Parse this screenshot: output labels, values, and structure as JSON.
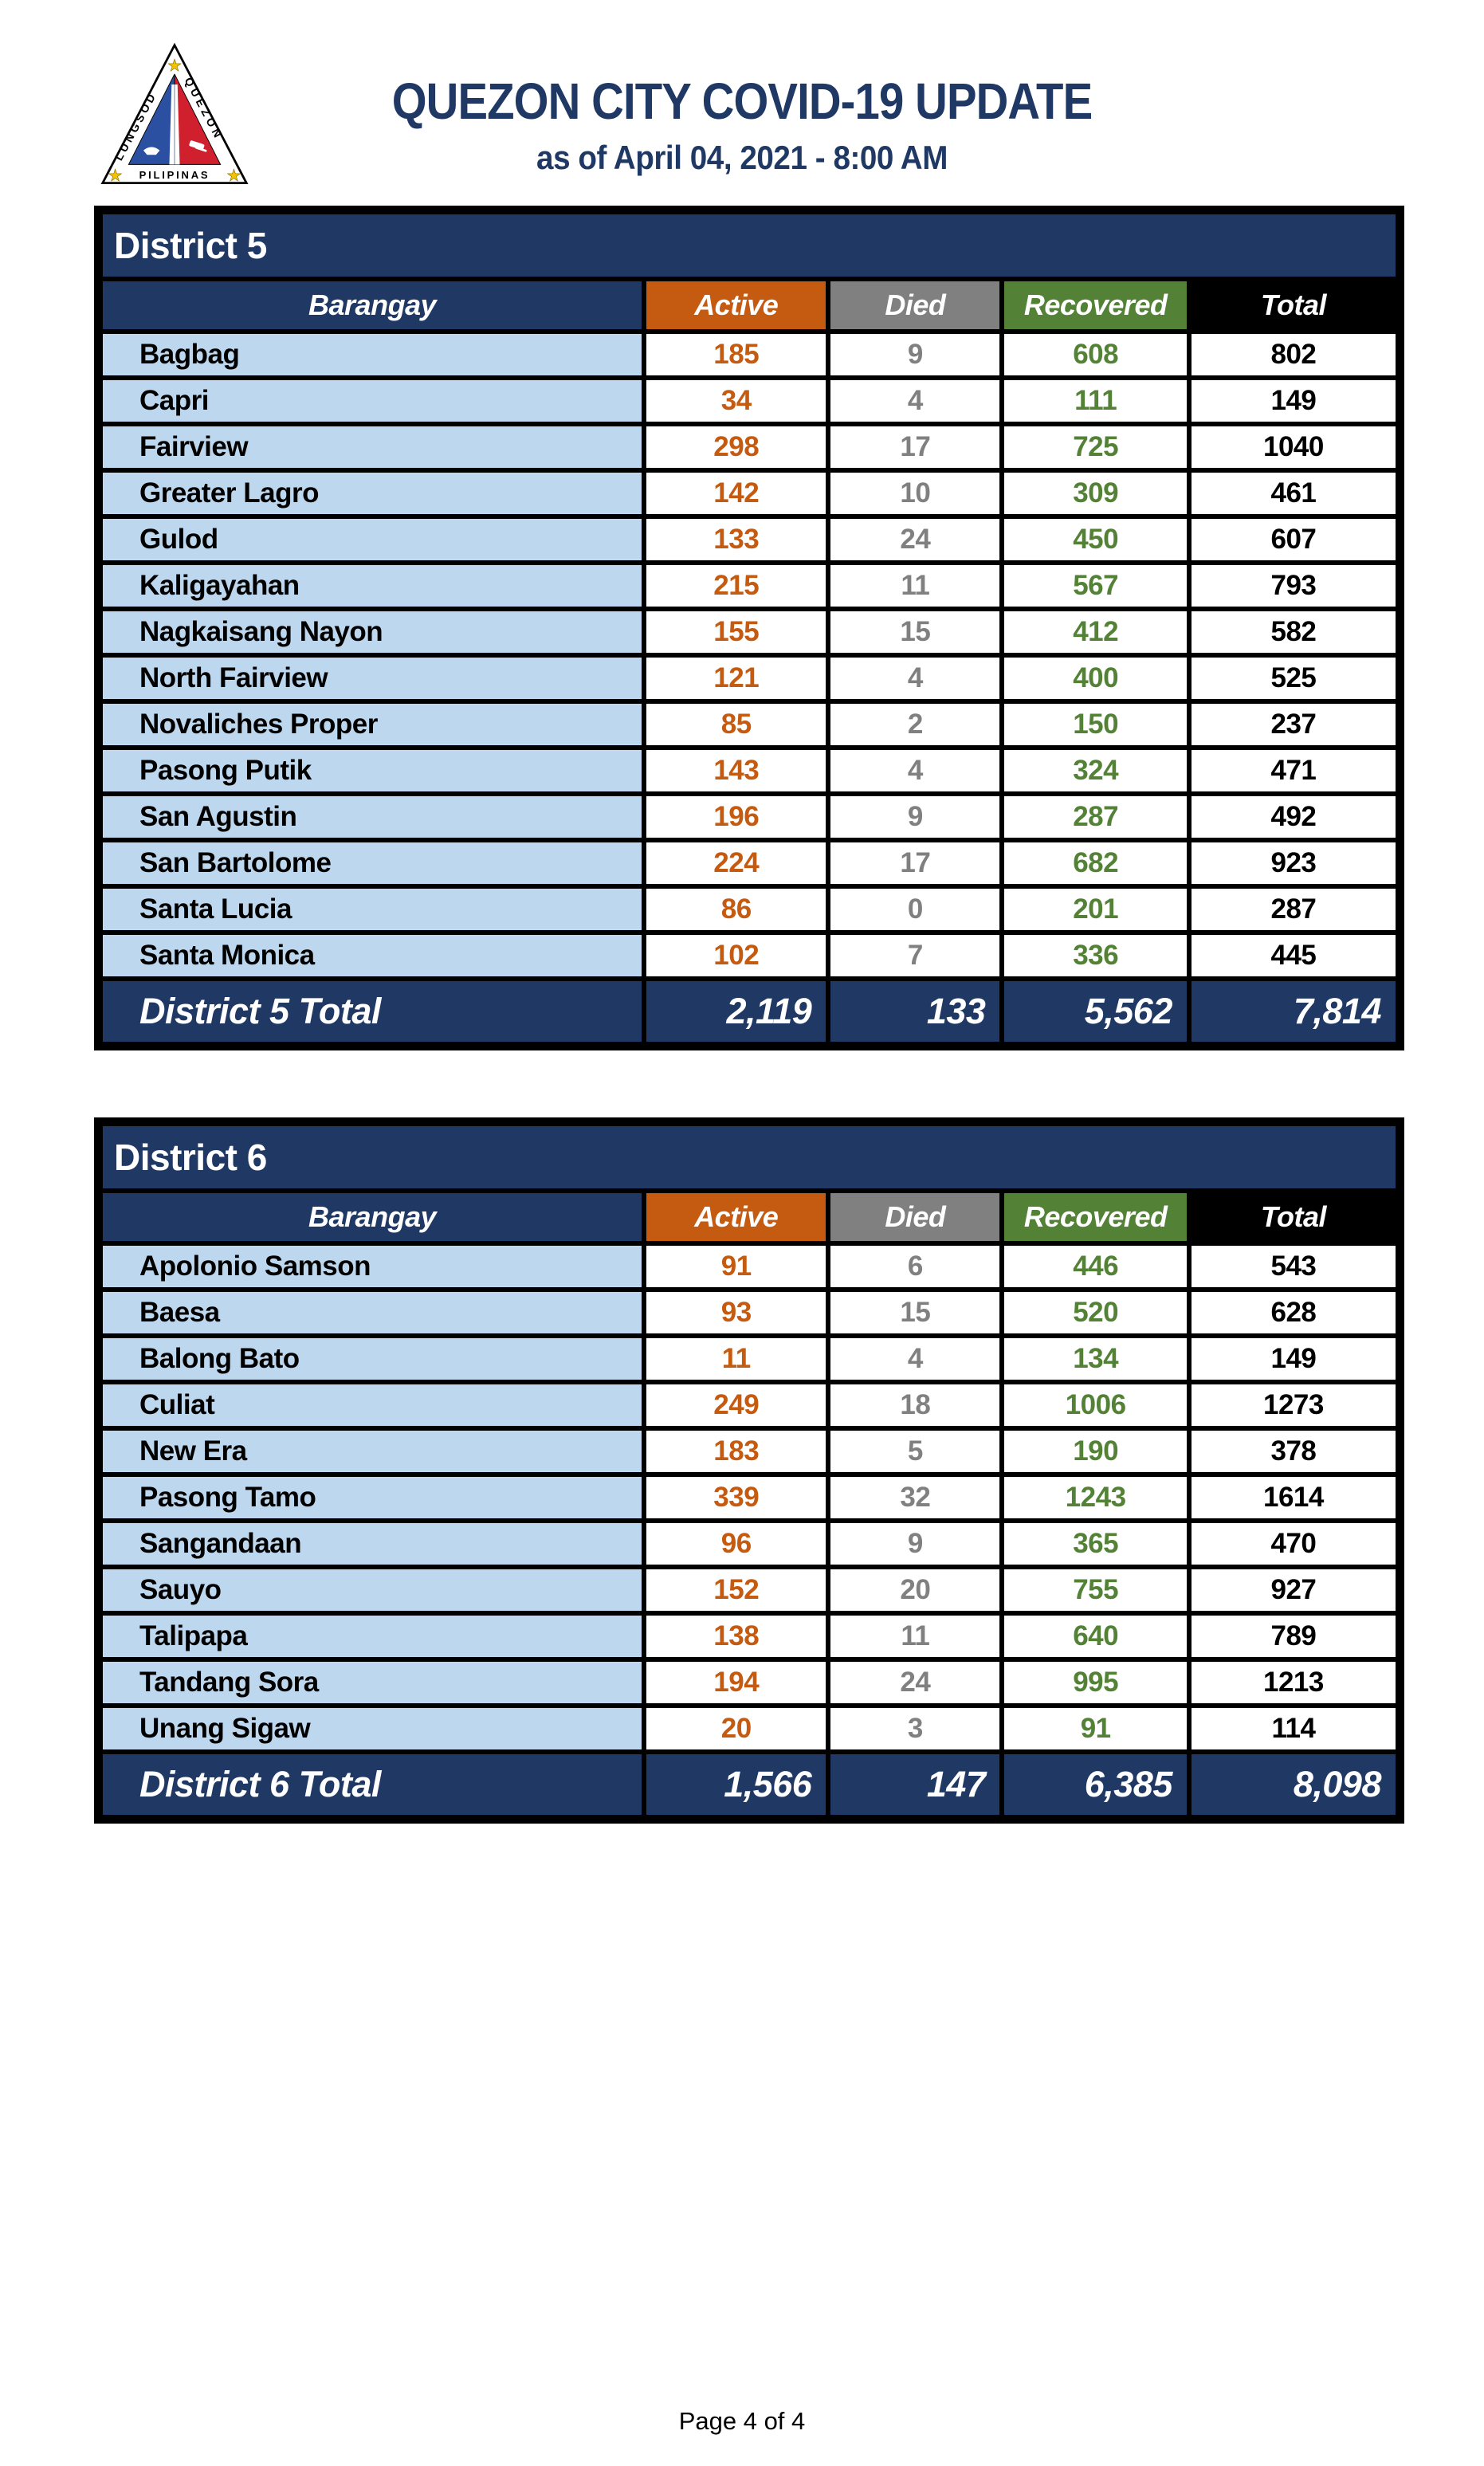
{
  "header": {
    "title": "QUEZON CITY COVID-19 UPDATE",
    "subtitle": "as of April 04, 2021 - 8:00 AM",
    "logo": {
      "left_text": "LUNGSOD",
      "right_text": "QUEZON",
      "bottom_text": "PILIPINAS"
    }
  },
  "columns": [
    "Barangay",
    "Active",
    "Died",
    "Recovered",
    "Total"
  ],
  "colors": {
    "navy": "#1F3864",
    "light_blue_row": "#BDD7EE",
    "active_orange": "#C55A11",
    "died_gray": "#808080",
    "recovered_green": "#538135",
    "total_black": "#000000",
    "title_text": "#1F3864"
  },
  "tables": [
    {
      "district": "District 5",
      "total_label": "District 5 Total",
      "rows": [
        {
          "barangay": "Bagbag",
          "active": "185",
          "died": "9",
          "recovered": "608",
          "total": "802"
        },
        {
          "barangay": "Capri",
          "active": "34",
          "died": "4",
          "recovered": "111",
          "total": "149"
        },
        {
          "barangay": "Fairview",
          "active": "298",
          "died": "17",
          "recovered": "725",
          "total": "1040"
        },
        {
          "barangay": "Greater Lagro",
          "active": "142",
          "died": "10",
          "recovered": "309",
          "total": "461"
        },
        {
          "barangay": "Gulod",
          "active": "133",
          "died": "24",
          "recovered": "450",
          "total": "607"
        },
        {
          "barangay": "Kaligayahan",
          "active": "215",
          "died": "11",
          "recovered": "567",
          "total": "793"
        },
        {
          "barangay": "Nagkaisang Nayon",
          "active": "155",
          "died": "15",
          "recovered": "412",
          "total": "582"
        },
        {
          "barangay": "North Fairview",
          "active": "121",
          "died": "4",
          "recovered": "400",
          "total": "525"
        },
        {
          "barangay": "Novaliches Proper",
          "active": "85",
          "died": "2",
          "recovered": "150",
          "total": "237"
        },
        {
          "barangay": "Pasong Putik",
          "active": "143",
          "died": "4",
          "recovered": "324",
          "total": "471"
        },
        {
          "barangay": "San Agustin",
          "active": "196",
          "died": "9",
          "recovered": "287",
          "total": "492"
        },
        {
          "barangay": "San Bartolome",
          "active": "224",
          "died": "17",
          "recovered": "682",
          "total": "923"
        },
        {
          "barangay": "Santa Lucia",
          "active": "86",
          "died": "0",
          "recovered": "201",
          "total": "287"
        },
        {
          "barangay": "Santa Monica",
          "active": "102",
          "died": "7",
          "recovered": "336",
          "total": "445"
        }
      ],
      "totals": {
        "active": "2,119",
        "died": "133",
        "recovered": "5,562",
        "total": "7,814"
      }
    },
    {
      "district": "District 6",
      "total_label": "District 6 Total",
      "rows": [
        {
          "barangay": "Apolonio Samson",
          "active": "91",
          "died": "6",
          "recovered": "446",
          "total": "543"
        },
        {
          "barangay": "Baesa",
          "active": "93",
          "died": "15",
          "recovered": "520",
          "total": "628"
        },
        {
          "barangay": "Balong Bato",
          "active": "11",
          "died": "4",
          "recovered": "134",
          "total": "149"
        },
        {
          "barangay": "Culiat",
          "active": "249",
          "died": "18",
          "recovered": "1006",
          "total": "1273"
        },
        {
          "barangay": "New Era",
          "active": "183",
          "died": "5",
          "recovered": "190",
          "total": "378"
        },
        {
          "barangay": "Pasong Tamo",
          "active": "339",
          "died": "32",
          "recovered": "1243",
          "total": "1614"
        },
        {
          "barangay": "Sangandaan",
          "active": "96",
          "died": "9",
          "recovered": "365",
          "total": "470"
        },
        {
          "barangay": "Sauyo",
          "active": "152",
          "died": "20",
          "recovered": "755",
          "total": "927"
        },
        {
          "barangay": "Talipapa",
          "active": "138",
          "died": "11",
          "recovered": "640",
          "total": "789"
        },
        {
          "barangay": "Tandang Sora",
          "active": "194",
          "died": "24",
          "recovered": "995",
          "total": "1213"
        },
        {
          "barangay": "Unang Sigaw",
          "active": "20",
          "died": "3",
          "recovered": "91",
          "total": "114"
        }
      ],
      "totals": {
        "active": "1,566",
        "died": "147",
        "recovered": "6,385",
        "total": "8,098"
      }
    }
  ],
  "footer": {
    "page": "Page 4 of 4"
  }
}
